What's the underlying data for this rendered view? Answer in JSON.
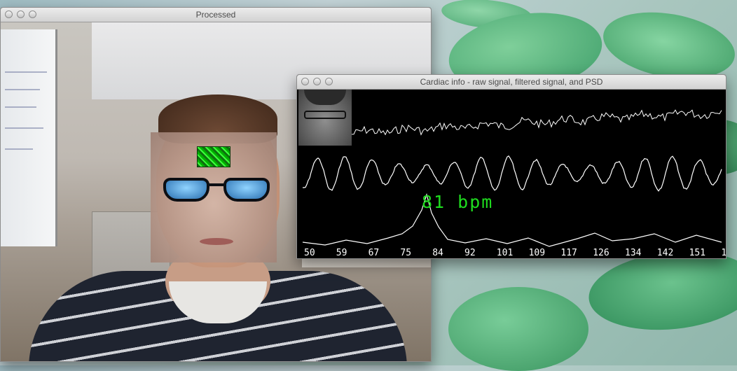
{
  "windows": {
    "processed": {
      "title": "Processed"
    },
    "cardiac": {
      "title": "Cardiac info - raw signal, filtered signal, and PSD",
      "bpm_label": "81 bpm",
      "freq_ticks": [
        "50",
        "59",
        "67",
        "75",
        "84",
        "92",
        "101",
        "109",
        "117",
        "126",
        "134",
        "142",
        "151",
        "1"
      ]
    }
  },
  "colors": {
    "bpm_text": "#1fdc1f",
    "roi": "#3cff3c"
  }
}
